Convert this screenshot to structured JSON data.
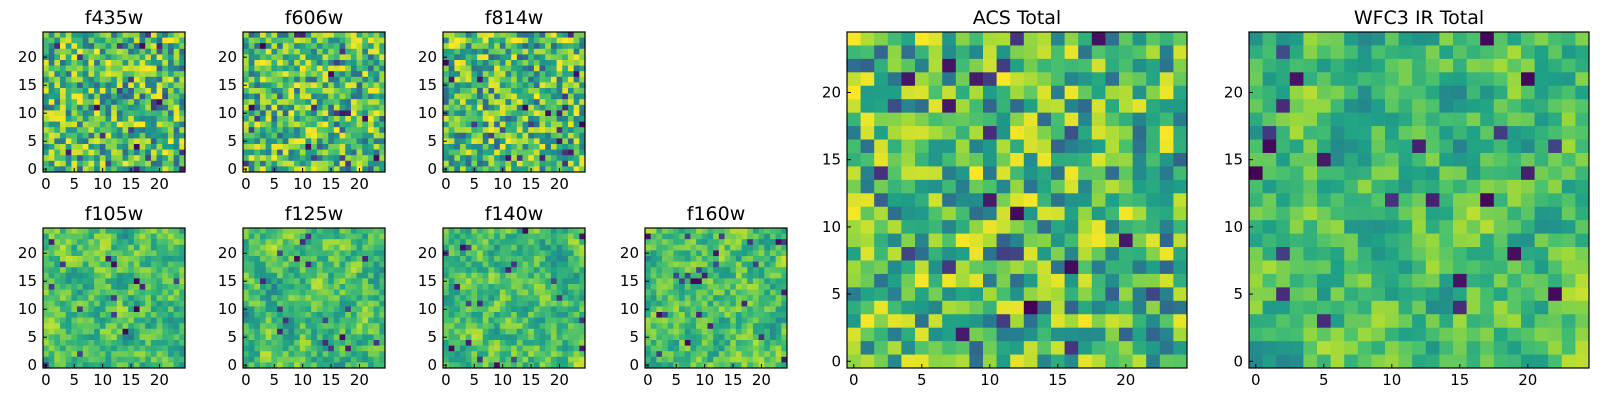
{
  "chart_data": [
    {
      "type": "heatmap",
      "title": "f435w",
      "xticks": [
        "0",
        "5",
        "10",
        "15",
        "20"
      ],
      "yticks": [
        "0",
        "5",
        "10",
        "15",
        "20"
      ],
      "xlim": [
        0,
        24
      ],
      "ylim": [
        0,
        24
      ],
      "colormap": "viridis",
      "grid": false
    },
    {
      "type": "heatmap",
      "title": "f606w",
      "xticks": [
        "0",
        "5",
        "10",
        "15",
        "20"
      ],
      "yticks": [
        "0",
        "5",
        "10",
        "15",
        "20"
      ],
      "xlim": [
        0,
        24
      ],
      "ylim": [
        0,
        24
      ],
      "colormap": "viridis",
      "grid": false
    },
    {
      "type": "heatmap",
      "title": "f814w",
      "xticks": [
        "0",
        "5",
        "10",
        "15",
        "20"
      ],
      "yticks": [
        "0",
        "5",
        "10",
        "15",
        "20"
      ],
      "xlim": [
        0,
        24
      ],
      "ylim": [
        0,
        24
      ],
      "colormap": "viridis",
      "grid": false
    },
    {
      "type": "heatmap",
      "title": "f105w",
      "xticks": [
        "0",
        "5",
        "10",
        "15",
        "20"
      ],
      "yticks": [
        "0",
        "5",
        "10",
        "15",
        "20"
      ],
      "xlim": [
        0,
        24
      ],
      "ylim": [
        0,
        24
      ],
      "colormap": "viridis",
      "grid": false
    },
    {
      "type": "heatmap",
      "title": "f125w",
      "xticks": [
        "0",
        "5",
        "10",
        "15",
        "20"
      ],
      "yticks": [
        "0",
        "5",
        "10",
        "15",
        "20"
      ],
      "xlim": [
        0,
        24
      ],
      "ylim": [
        0,
        24
      ],
      "colormap": "viridis",
      "grid": false
    },
    {
      "type": "heatmap",
      "title": "f140w",
      "xticks": [
        "0",
        "5",
        "10",
        "15",
        "20"
      ],
      "yticks": [
        "0",
        "5",
        "10",
        "15",
        "20"
      ],
      "xlim": [
        0,
        24
      ],
      "ylim": [
        0,
        24
      ],
      "colormap": "viridis",
      "grid": false
    },
    {
      "type": "heatmap",
      "title": "f160w",
      "xticks": [
        "0",
        "5",
        "10",
        "15",
        "20"
      ],
      "yticks": [
        "0",
        "5",
        "10",
        "15",
        "20"
      ],
      "xlim": [
        0,
        24
      ],
      "ylim": [
        0,
        24
      ],
      "colormap": "viridis",
      "grid": false
    },
    {
      "type": "heatmap",
      "title": "ACS Total",
      "xticks": [
        "0",
        "5",
        "10",
        "15",
        "20"
      ],
      "yticks": [
        "0",
        "5",
        "10",
        "15",
        "20"
      ],
      "xlim": [
        0,
        24
      ],
      "ylim": [
        0,
        24
      ],
      "colormap": "viridis",
      "grid": false
    },
    {
      "type": "heatmap",
      "title": "WFC3 IR Total",
      "xticks": [
        "0",
        "5",
        "10",
        "15",
        "20"
      ],
      "yticks": [
        "0",
        "5",
        "10",
        "15",
        "20"
      ],
      "xlim": [
        0,
        24
      ],
      "ylim": [
        0,
        24
      ],
      "colormap": "viridis",
      "grid": false
    }
  ],
  "colors": {
    "viridis": [
      "#440154",
      "#46327e",
      "#365c8d",
      "#277f8e",
      "#1fa187",
      "#4ac16d",
      "#a0da39",
      "#fde725"
    ]
  }
}
